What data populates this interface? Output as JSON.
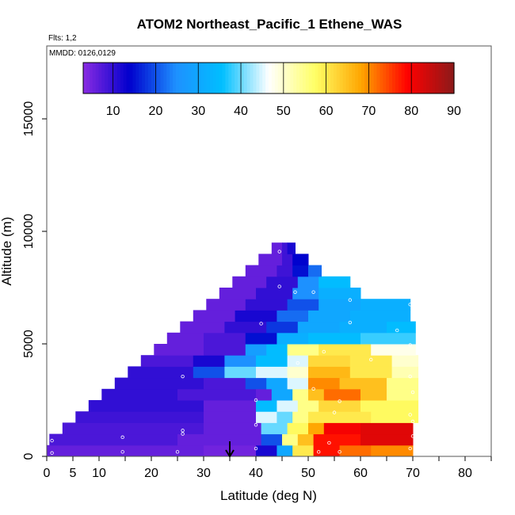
{
  "chart_data": {
    "type": "heatmap",
    "title": "ATOM2 Northeast_Pacific_1 Ethene_WAS",
    "subtitle_flights": "Flts: 1,2",
    "subtitle_dates": "MMDD: 0126,0129",
    "xlabel": "Latitude (deg N)",
    "ylabel": "Altitude (m)",
    "xlim": [
      0,
      85
    ],
    "ylim": [
      0,
      17500
    ],
    "x_ticks": [
      0,
      5,
      10,
      20,
      30,
      40,
      50,
      60,
      70,
      80
    ],
    "y_ticks": [
      0,
      5000,
      10000,
      15000
    ],
    "colorbar": {
      "range": [
        3,
        90
      ],
      "ticks": [
        10,
        20,
        30,
        40,
        50,
        60,
        70,
        80,
        90
      ],
      "colors": [
        "#8a2be2",
        "#0000cd",
        "#1e90ff",
        "#00bfff",
        "#ffffff",
        "#ffff66",
        "#ffa500",
        "#ff0000",
        "#8b1a1a"
      ]
    },
    "arrow_marker": {
      "latitude": 35
    },
    "layers": [
      {
        "alt": 0,
        "top": 500,
        "lat_start": 0,
        "lat_end": 70,
        "segments": [
          [
            0,
            6
          ],
          [
            30,
            5
          ],
          [
            40,
            12
          ],
          [
            44,
            30
          ],
          [
            47,
            60
          ],
          [
            51,
            78
          ],
          [
            56,
            72
          ],
          [
            62,
            70
          ]
        ]
      },
      {
        "alt": 500,
        "top": 1000,
        "lat_start": 0.5,
        "lat_end": 70,
        "segments": [
          [
            0.5,
            8
          ],
          [
            25,
            6
          ],
          [
            41,
            20
          ],
          [
            45,
            55
          ],
          [
            48,
            65
          ],
          [
            51,
            78
          ],
          [
            60,
            82
          ]
        ]
      },
      {
        "alt": 1000,
        "top": 1500,
        "lat_start": 3,
        "lat_end": 70,
        "segments": [
          [
            3,
            8
          ],
          [
            30,
            6
          ],
          [
            41,
            40
          ],
          [
            46,
            58
          ],
          [
            50,
            68
          ],
          [
            53,
            80
          ],
          [
            60,
            82
          ]
        ]
      },
      {
        "alt": 1500,
        "top": 2000,
        "lat_start": 5.5,
        "lat_end": 71,
        "segments": [
          [
            5.5,
            9
          ],
          [
            30,
            6
          ],
          [
            40,
            45
          ],
          [
            44,
            40
          ],
          [
            47,
            55
          ],
          [
            50,
            60
          ],
          [
            62,
            58
          ]
        ]
      },
      {
        "alt": 2000,
        "top": 2500,
        "lat_start": 8,
        "lat_end": 71,
        "segments": [
          [
            8,
            10
          ],
          [
            30,
            6
          ],
          [
            40,
            35
          ],
          [
            44,
            45
          ],
          [
            48,
            55
          ],
          [
            52,
            62
          ],
          [
            60,
            58
          ]
        ]
      },
      {
        "alt": 2500,
        "top": 3000,
        "lat_start": 10.5,
        "lat_end": 71,
        "segments": [
          [
            10.5,
            10
          ],
          [
            25,
            8
          ],
          [
            40,
            6
          ],
          [
            43,
            30
          ],
          [
            47,
            55
          ],
          [
            50,
            65
          ],
          [
            53,
            72
          ],
          [
            60,
            65
          ],
          [
            65,
            55
          ]
        ]
      },
      {
        "alt": 3000,
        "top": 3500,
        "lat_start": 13,
        "lat_end": 71,
        "segments": [
          [
            13,
            10
          ],
          [
            30,
            8
          ],
          [
            38,
            20
          ],
          [
            42,
            30
          ],
          [
            46,
            45
          ],
          [
            50,
            70
          ],
          [
            56,
            65
          ],
          [
            65,
            55
          ]
        ]
      },
      {
        "alt": 3500,
        "top": 4000,
        "lat_start": 15.5,
        "lat_end": 71,
        "segments": [
          [
            15.5,
            10
          ],
          [
            28,
            20
          ],
          [
            34,
            40
          ],
          [
            40,
            45
          ],
          [
            46,
            50
          ],
          [
            50,
            66
          ],
          [
            58,
            60
          ],
          [
            66,
            52
          ]
        ]
      },
      {
        "alt": 4000,
        "top": 4500,
        "lat_start": 18,
        "lat_end": 71,
        "segments": [
          [
            18,
            8
          ],
          [
            28,
            12
          ],
          [
            34,
            25
          ],
          [
            40,
            35
          ],
          [
            46,
            45
          ],
          [
            50,
            62
          ],
          [
            58,
            60
          ],
          [
            66,
            50
          ]
        ]
      },
      {
        "alt": 4500,
        "top": 5000,
        "lat_start": 20.5,
        "lat_end": 70.5,
        "segments": [
          [
            20.5,
            6
          ],
          [
            30,
            8
          ],
          [
            38,
            28
          ],
          [
            42,
            35
          ],
          [
            46,
            55
          ],
          [
            52,
            60
          ],
          [
            62,
            48
          ]
        ]
      },
      {
        "alt": 5000,
        "top": 5500,
        "lat_start": 23,
        "lat_end": 70.5,
        "segments": [
          [
            23,
            6
          ],
          [
            30,
            8
          ],
          [
            38,
            15
          ],
          [
            44,
            32
          ],
          [
            50,
            35
          ],
          [
            60,
            38
          ]
        ]
      },
      {
        "alt": 5500,
        "top": 6000,
        "lat_start": 25.5,
        "lat_end": 70.5,
        "segments": [
          [
            25.5,
            6
          ],
          [
            34,
            10
          ],
          [
            42,
            18
          ],
          [
            48,
            30
          ],
          [
            56,
            32
          ],
          [
            65,
            35
          ]
        ]
      },
      {
        "alt": 6000,
        "top": 6500,
        "lat_start": 28,
        "lat_end": 69.5,
        "segments": [
          [
            28,
            6
          ],
          [
            36,
            12
          ],
          [
            44,
            22
          ],
          [
            50,
            30
          ],
          [
            58,
            32
          ]
        ]
      },
      {
        "alt": 6500,
        "top": 7000,
        "lat_start": 30.5,
        "lat_end": 69.5,
        "segments": [
          [
            30.5,
            6
          ],
          [
            38,
            10
          ],
          [
            46,
            20
          ],
          [
            52,
            30
          ],
          [
            60,
            32
          ]
        ]
      },
      {
        "alt": 7000,
        "top": 7500,
        "lat_start": 33,
        "lat_end": 60,
        "segments": [
          [
            33,
            6
          ],
          [
            40,
            10
          ],
          [
            47,
            25
          ],
          [
            52,
            32
          ]
        ]
      },
      {
        "alt": 7500,
        "top": 8000,
        "lat_start": 35.5,
        "lat_end": 58,
        "segments": [
          [
            35.5,
            6
          ],
          [
            42,
            10
          ],
          [
            48,
            25
          ],
          [
            52,
            35
          ]
        ]
      },
      {
        "alt": 8000,
        "top": 8500,
        "lat_start": 38,
        "lat_end": 52.5,
        "segments": [
          [
            38,
            6
          ],
          [
            44,
            9
          ],
          [
            47,
            15
          ],
          [
            50,
            22
          ]
        ]
      },
      {
        "alt": 8500,
        "top": 9000,
        "lat_start": 40.5,
        "lat_end": 50,
        "segments": [
          [
            40.5,
            6
          ],
          [
            45,
            9
          ],
          [
            47,
            14
          ]
        ]
      },
      {
        "alt": 9000,
        "top": 9500,
        "lat_start": 43,
        "lat_end": 47.5,
        "segments": [
          [
            43,
            6
          ],
          [
            45,
            9
          ],
          [
            46,
            12
          ]
        ]
      }
    ],
    "sample_points": [
      {
        "x": 1,
        "y": 150
      },
      {
        "x": 1,
        "y": 700
      },
      {
        "x": 14.5,
        "y": 200
      },
      {
        "x": 14.5,
        "y": 850
      },
      {
        "x": 25,
        "y": 200
      },
      {
        "x": 26,
        "y": 1150
      },
      {
        "x": 26,
        "y": 1000
      },
      {
        "x": 26,
        "y": 3550
      },
      {
        "x": 40,
        "y": 350
      },
      {
        "x": 40,
        "y": 1400
      },
      {
        "x": 40,
        "y": 2500
      },
      {
        "x": 41,
        "y": 5900
      },
      {
        "x": 44.5,
        "y": 7550
      },
      {
        "x": 44.5,
        "y": 9100
      },
      {
        "x": 47.5,
        "y": 7300
      },
      {
        "x": 48,
        "y": 4150
      },
      {
        "x": 51,
        "y": 7300
      },
      {
        "x": 51,
        "y": 3000
      },
      {
        "x": 52,
        "y": 200
      },
      {
        "x": 53,
        "y": 4650
      },
      {
        "x": 55,
        "y": 1950
      },
      {
        "x": 56,
        "y": 200
      },
      {
        "x": 58,
        "y": 5950
      },
      {
        "x": 58,
        "y": 6950
      },
      {
        "x": 56,
        "y": 2450
      },
      {
        "x": 62,
        "y": 4300
      },
      {
        "x": 67,
        "y": 5600
      },
      {
        "x": 69.5,
        "y": 4950
      },
      {
        "x": 69.5,
        "y": 3550
      },
      {
        "x": 70,
        "y": 2850
      },
      {
        "x": 70,
        "y": 1550
      },
      {
        "x": 70,
        "y": 900
      },
      {
        "x": 69.5,
        "y": 1850
      },
      {
        "x": 69.5,
        "y": 350
      },
      {
        "x": 69.5,
        "y": 6750
      },
      {
        "x": 54,
        "y": 600
      }
    ]
  }
}
